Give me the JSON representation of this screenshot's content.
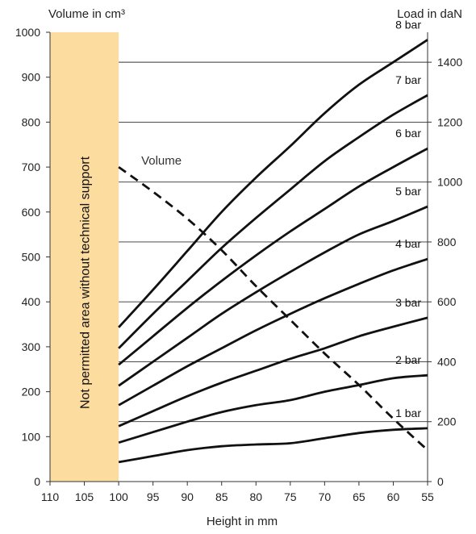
{
  "chart_data": {
    "type": "line",
    "xlabel": "Height in mm",
    "ylabel_left": "Volume in cm³",
    "ylabel_right": "Load in daN",
    "x_ticks": [
      110,
      105,
      100,
      95,
      90,
      85,
      80,
      75,
      70,
      65,
      60,
      55
    ],
    "y_left_ticks": [
      0,
      100,
      200,
      300,
      400,
      500,
      600,
      700,
      800,
      900,
      1000
    ],
    "y_right_ticks": [
      0,
      200,
      400,
      600,
      800,
      1000,
      1200,
      1400
    ],
    "xlim": [
      110,
      55
    ],
    "ylim_left": [
      0,
      1000
    ],
    "ylim_right": [
      0,
      1500
    ],
    "x_axis_reversed": true,
    "right_axis_gridlines": true,
    "restricted_zone": {
      "x_range": [
        110,
        100
      ],
      "label": "Not permitted area without technical support",
      "color": "#FDDCA0"
    },
    "volume_series": {
      "label": "Volume",
      "axis": "left",
      "style": "dashed",
      "x": [
        100,
        95,
        90,
        85,
        80,
        75,
        70,
        65,
        60,
        55
      ],
      "values": [
        700,
        645,
        585,
        515,
        435,
        360,
        285,
        215,
        140,
        70
      ]
    },
    "series": [
      {
        "name": "1 bar",
        "axis": "right",
        "x": [
          100,
          95,
          90,
          85,
          80,
          75,
          70,
          65,
          60,
          55
        ],
        "values": [
          65,
          85,
          105,
          118,
          124,
          128,
          145,
          162,
          173,
          178
        ]
      },
      {
        "name": "2 bar",
        "axis": "right",
        "x": [
          100,
          95,
          90,
          85,
          80,
          75,
          70,
          65,
          60,
          55
        ],
        "values": [
          130,
          165,
          200,
          232,
          255,
          272,
          300,
          322,
          345,
          355
        ]
      },
      {
        "name": "3 bar",
        "axis": "right",
        "x": [
          100,
          95,
          90,
          85,
          80,
          75,
          70,
          65,
          60,
          55
        ],
        "values": [
          185,
          235,
          285,
          330,
          370,
          410,
          445,
          485,
          517,
          547
        ]
      },
      {
        "name": "4 bar",
        "axis": "right",
        "x": [
          100,
          95,
          90,
          85,
          80,
          75,
          70,
          65,
          60,
          55
        ],
        "values": [
          255,
          320,
          385,
          445,
          505,
          560,
          612,
          660,
          705,
          743
        ]
      },
      {
        "name": "5 bar",
        "axis": "right",
        "x": [
          100,
          95,
          90,
          85,
          80,
          75,
          70,
          65,
          60,
          55
        ],
        "values": [
          320,
          400,
          480,
          560,
          632,
          700,
          765,
          825,
          870,
          918
        ]
      },
      {
        "name": "6 bar",
        "axis": "right",
        "x": [
          100,
          95,
          90,
          85,
          80,
          75,
          70,
          65,
          60,
          55
        ],
        "values": [
          390,
          485,
          580,
          670,
          755,
          835,
          910,
          985,
          1050,
          1112
        ]
      },
      {
        "name": "7 bar",
        "axis": "right",
        "x": [
          100,
          95,
          90,
          85,
          80,
          75,
          70,
          65,
          60,
          55
        ],
        "values": [
          445,
          560,
          670,
          780,
          880,
          975,
          1070,
          1150,
          1225,
          1290
        ]
      },
      {
        "name": "8 bar",
        "axis": "right",
        "x": [
          100,
          95,
          90,
          85,
          80,
          75,
          70,
          65,
          60,
          55
        ],
        "values": [
          515,
          640,
          770,
          900,
          1015,
          1120,
          1230,
          1325,
          1400,
          1475
        ]
      }
    ]
  }
}
